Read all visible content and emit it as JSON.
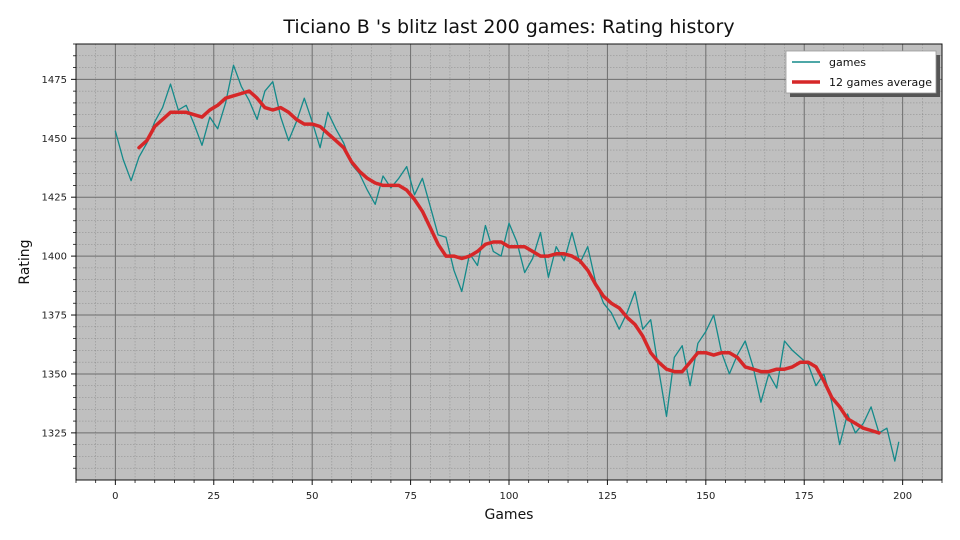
{
  "chart_data": {
    "type": "line",
    "title": "Ticiano B 's blitz last 200 games: Rating history",
    "xlabel": "Games",
    "ylabel": "Rating",
    "xlim": [
      -10,
      210
    ],
    "ylim": [
      1305,
      1490
    ],
    "xticks": [
      0,
      25,
      50,
      75,
      100,
      125,
      150,
      175,
      200
    ],
    "yticks": [
      1325,
      1350,
      1375,
      1400,
      1425,
      1450,
      1475
    ],
    "grid": true,
    "legend_position": "top-right",
    "series": [
      {
        "name": "games",
        "color": "#148a8a",
        "x": [
          0,
          2,
          4,
          6,
          8,
          10,
          12,
          14,
          16,
          18,
          20,
          22,
          24,
          26,
          28,
          30,
          32,
          34,
          36,
          38,
          40,
          42,
          44,
          46,
          48,
          50,
          52,
          54,
          56,
          58,
          60,
          62,
          64,
          66,
          68,
          70,
          72,
          74,
          76,
          78,
          80,
          82,
          84,
          86,
          88,
          90,
          92,
          94,
          96,
          98,
          100,
          102,
          104,
          106,
          108,
          110,
          112,
          114,
          116,
          118,
          120,
          122,
          124,
          126,
          128,
          130,
          132,
          134,
          136,
          138,
          140,
          142,
          144,
          146,
          148,
          150,
          152,
          154,
          156,
          158,
          160,
          162,
          164,
          166,
          168,
          170,
          172,
          174,
          176,
          178,
          180,
          182,
          184,
          186,
          188,
          190,
          192,
          194,
          196,
          198,
          199
        ],
        "values": [
          1453,
          1441,
          1432,
          1442,
          1448,
          1457,
          1463,
          1473,
          1462,
          1464,
          1456,
          1447,
          1459,
          1454,
          1465,
          1481,
          1472,
          1466,
          1458,
          1470,
          1474,
          1459,
          1449,
          1457,
          1467,
          1457,
          1446,
          1461,
          1454,
          1448,
          1439,
          1435,
          1428,
          1422,
          1434,
          1429,
          1433,
          1438,
          1426,
          1433,
          1421,
          1409,
          1408,
          1394,
          1385,
          1401,
          1396,
          1413,
          1402,
          1400,
          1414,
          1406,
          1393,
          1399,
          1410,
          1391,
          1404,
          1398,
          1410,
          1397,
          1404,
          1389,
          1380,
          1376,
          1369,
          1376,
          1385,
          1369,
          1373,
          1352,
          1332,
          1357,
          1362,
          1345,
          1363,
          1368,
          1375,
          1359,
          1350,
          1358,
          1364,
          1353,
          1338,
          1350,
          1344,
          1364,
          1360,
          1357,
          1354,
          1345,
          1350,
          1338,
          1320,
          1333,
          1325,
          1329,
          1336,
          1325,
          1327,
          1313,
          1321
        ]
      },
      {
        "name": "12 games average",
        "color": "#d62728",
        "x": [
          6,
          8,
          10,
          12,
          14,
          16,
          18,
          20,
          22,
          24,
          26,
          28,
          30,
          32,
          34,
          36,
          38,
          40,
          42,
          44,
          46,
          48,
          50,
          52,
          54,
          56,
          58,
          60,
          62,
          64,
          66,
          68,
          70,
          72,
          74,
          76,
          78,
          80,
          82,
          84,
          86,
          88,
          90,
          92,
          94,
          96,
          98,
          100,
          102,
          104,
          106,
          108,
          110,
          112,
          114,
          116,
          118,
          120,
          122,
          124,
          126,
          128,
          130,
          132,
          134,
          136,
          138,
          140,
          142,
          144,
          146,
          148,
          150,
          152,
          154,
          156,
          158,
          160,
          162,
          164,
          166,
          168,
          170,
          172,
          174,
          176,
          178,
          180,
          182,
          184,
          186,
          188,
          190,
          192,
          194
        ],
        "values": [
          1446,
          1449,
          1455,
          1458,
          1461,
          1461,
          1461,
          1460,
          1459,
          1462,
          1464,
          1467,
          1468,
          1469,
          1470,
          1467,
          1463,
          1462,
          1463,
          1461,
          1458,
          1456,
          1456,
          1455,
          1452,
          1449,
          1446,
          1440,
          1436,
          1433,
          1431,
          1430,
          1430,
          1430,
          1428,
          1424,
          1419,
          1412,
          1405,
          1400,
          1400,
          1399,
          1400,
          1402,
          1405,
          1406,
          1406,
          1404,
          1404,
          1404,
          1402,
          1400,
          1400,
          1401,
          1401,
          1400,
          1398,
          1394,
          1388,
          1383,
          1380,
          1378,
          1374,
          1371,
          1366,
          1359,
          1355,
          1352,
          1351,
          1351,
          1355,
          1359,
          1359,
          1358,
          1359,
          1359,
          1357,
          1353,
          1352,
          1351,
          1351,
          1352,
          1352,
          1353,
          1355,
          1355,
          1353,
          1347,
          1340,
          1336,
          1331,
          1329,
          1327,
          1326,
          1325
        ]
      }
    ]
  }
}
